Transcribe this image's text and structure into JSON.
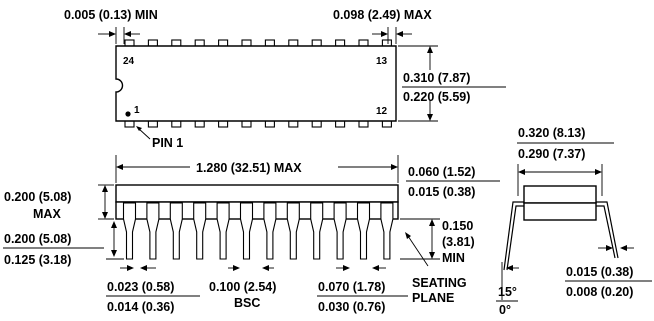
{
  "top_view": {
    "pin_24": "24",
    "pin_13": "13",
    "pin_1": "1",
    "pin_12": "12",
    "pin1_label": "PIN 1",
    "dim_end_gap": "0.005 (0.13) MIN",
    "dim_lead_top": "0.098 (2.49) MAX",
    "dim_width_max": "0.310 (7.87)",
    "dim_width_min": "0.220 (5.59)"
  },
  "side_view": {
    "dim_length": "1.280 (32.51) MAX",
    "dim_ext_max": "0.060 (1.52)",
    "dim_ext_min": "0.015 (0.38)",
    "dim_height_a": "0.200 (5.08)",
    "dim_height_b": "MAX",
    "dim_lead_max": "0.200 (5.08)",
    "dim_lead_min": "0.125 (3.18)",
    "dim_seat_a": "0.150",
    "dim_seat_b": "(3.81)",
    "dim_seat_c": "MIN",
    "dim_lw_max": "0.023 (0.58)",
    "dim_lw_min": "0.014 (0.36)",
    "dim_pitch": "0.100 (2.54)",
    "dim_pitch_b": "BSC",
    "dim_sh_max": "0.070 (1.78)",
    "dim_sh_min": "0.030 (0.76)",
    "seating_a": "SEATING",
    "seating_b": "PLANE"
  },
  "end_view": {
    "dim_span_max": "0.320 (8.13)",
    "dim_span_min": "0.290 (7.37)",
    "angle_max": "15°",
    "angle_min": "0°",
    "dim_thk_max": "0.015 (0.38)",
    "dim_thk_min": "0.008 (0.20)"
  }
}
